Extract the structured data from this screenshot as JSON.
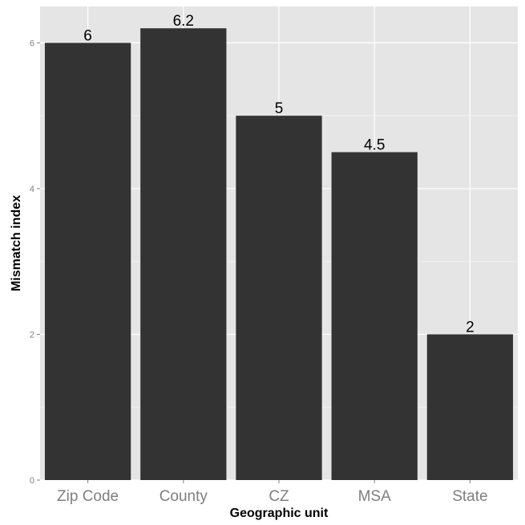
{
  "chart_data": {
    "type": "bar",
    "categories": [
      "Zip Code",
      "County",
      "CZ",
      "MSA",
      "State"
    ],
    "values": [
      6,
      6.2,
      5,
      4.5,
      2
    ],
    "data_labels": [
      "6",
      "6.2",
      "5",
      "4.5",
      "2"
    ],
    "title": "",
    "xlabel": "Geographic unit",
    "ylabel": "Mismatch index",
    "ylim": [
      0,
      6.5
    ],
    "yticks": [
      0,
      2,
      4,
      6
    ],
    "ytick_labels": [
      "0",
      "2",
      "4",
      "6"
    ],
    "grid": true,
    "legend": "none",
    "colors": {
      "bar": "#333333",
      "panel_background": "#e5e5e5",
      "grid_major": "#ffffff",
      "grid_minor": "#f2f2f2",
      "tick_text": "#7f7f7f",
      "title_text": "#000000"
    }
  }
}
